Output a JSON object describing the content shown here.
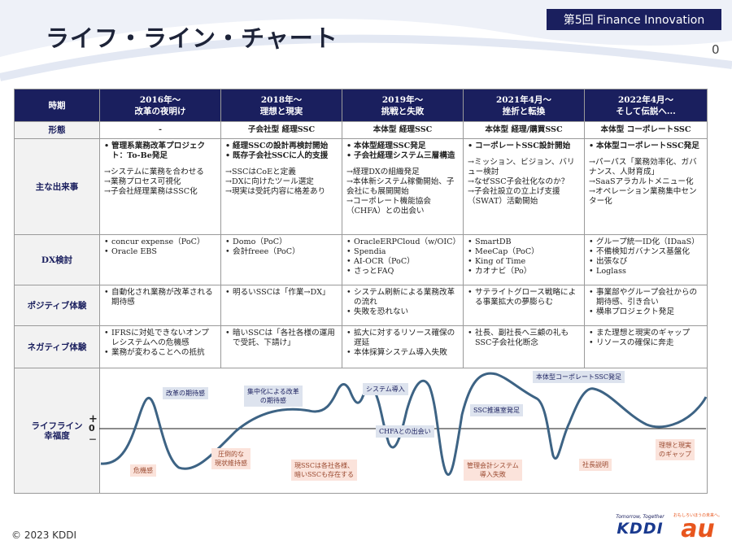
{
  "header": {
    "title": "ライフ・ライン・チャート",
    "badge": "第5回 Finance Innovation",
    "page_number": "0"
  },
  "columns": [
    {
      "period": "2016年～",
      "subtitle": "改革の夜明け"
    },
    {
      "period": "2018年～",
      "subtitle": "理想と現実"
    },
    {
      "period": "2019年～",
      "subtitle": "挑戦と失敗"
    },
    {
      "period": "2021年4月～",
      "subtitle": "挫折と転換"
    },
    {
      "period": "2022年4月～",
      "subtitle": "そして伝説へ..."
    }
  ],
  "rows": {
    "period_head": "時期",
    "form_head": "形態",
    "events_head": "主な出来事",
    "dx_head": "DX検討",
    "positive_head": "ポジティブ体験",
    "negative_head": "ネガティブ体験",
    "lifeline_head": "ライフライン\n幸福度"
  },
  "forms": [
    "-",
    "子会社型 経理SSC",
    "本体型 経理SSC",
    "本体型 経理/購買SSC",
    "本体型 コーポレートSSC"
  ],
  "events": [
    {
      "bullets": [
        "管理系業務改革プロジェクト：To-Be発足"
      ],
      "arrows": [
        "→システムに業務を合わせる",
        "→業務プロセス可視化",
        "→子会社経理業務はSSC化"
      ]
    },
    {
      "bullets": [
        "経理SSCの設計再検討開始",
        "既存子会社SSCに人的支援"
      ],
      "arrows": [
        "→SSCはCoEと定義",
        "→DXに向けたツール選定",
        "→現実は受託内容に格差あり"
      ]
    },
    {
      "bullets": [
        "本体型経理SSC発足",
        "子会社経理システム三層構造"
      ],
      "arrows": [
        "→経理DXの組織発足",
        "→本体新システム稼働開始、子会社にも展開開始",
        "→コーポレート機能協会（CHFA）との出会い"
      ]
    },
    {
      "bullets": [
        "コーポレートSSC設計開始"
      ],
      "arrows": [
        "→ミッション、ビジョン、バリュー検討",
        "→なぜSSC子会社化なのか？",
        "→子会社設立の立上げ支援（SWAT）活動開始"
      ]
    },
    {
      "bullets": [
        "本体型コーポレートSSC発足"
      ],
      "arrows": [
        "→パーパス「業務効率化、ガバナンス、人財育成」",
        "→SaaSアラカルトメニュー化",
        "→オペレーション業務集中センター化"
      ]
    }
  ],
  "dx": [
    [
      "concur expense（PoC）",
      "Oracle EBS"
    ],
    [
      "Domo（PoC）",
      "会計freee（PoC）"
    ],
    [
      "OracleERPCloud（w/OIC）",
      "Spendia",
      "AI-OCR（PoC）",
      "さっとFAQ"
    ],
    [
      "SmartDB",
      "MeeCap（PoC）",
      "King of Time",
      "カオナビ（Po）"
    ],
    [
      "グループ統一ID化（IDaaS）",
      "不備検知ガバナンス基盤化",
      "出張なび",
      "Loglass"
    ]
  ],
  "positive": [
    [
      "自動化され業務が改革される期待感"
    ],
    [
      "明るいSSCは「作業→DX」"
    ],
    [
      "システム刷新による業務改革の流れ",
      "失敗を恐れない"
    ],
    [
      "サテライトグロース戦略による事業拡大の夢膨らむ"
    ],
    [
      "事業部やグループ会社からの期待感、引き合い",
      "横串プロジェクト発足"
    ]
  ],
  "negative": [
    [
      "IFRSに対処できないオンプレシステムへの危機感",
      "業務が変わることへの抵抗"
    ],
    [
      "暗いSSCは「各社各様の運用で受託、下請け」"
    ],
    [
      "拡大に対するリソース確保の遅延",
      "本体採算システム導入失敗"
    ],
    [
      "社長、副社長へ三顧の礼もSSC子会社化断念"
    ],
    [
      "また理想と現実のギャップ",
      "リソースの確保に奔走"
    ]
  ],
  "lifeline": {
    "plus": "+",
    "zero": "0",
    "minus": "－",
    "callouts": {
      "c1": "改革の期待感",
      "c2": "危機感",
      "c3": "圧倒的な\n現状維持感",
      "c4": "集中化による改革\nの期待感",
      "c5": "現SSCは各社各様、\n暗いSSCも存在する",
      "c6": "システム導入",
      "c7": "CHFAとの出会い",
      "c8": "管理会計システム\n導入失敗",
      "c9": "SSC推進室発足",
      "c10": "本体型コーポレートSSC発足",
      "c11": "社長説明",
      "c12": "理想と現実\nのギャップ"
    }
  },
  "footer": {
    "copyright": "© 2023 KDDI",
    "kddi_tag": "Tomorrow, Together",
    "kddi_logo": "KDDI",
    "au_tag": "おもしろいほうの未来へ。",
    "au_logo": "au"
  },
  "colors": {
    "navy": "#1a1f5e",
    "line": "#3d6384",
    "callout_blue": "#dde3ee",
    "callout_pink": "#fbe3db"
  }
}
